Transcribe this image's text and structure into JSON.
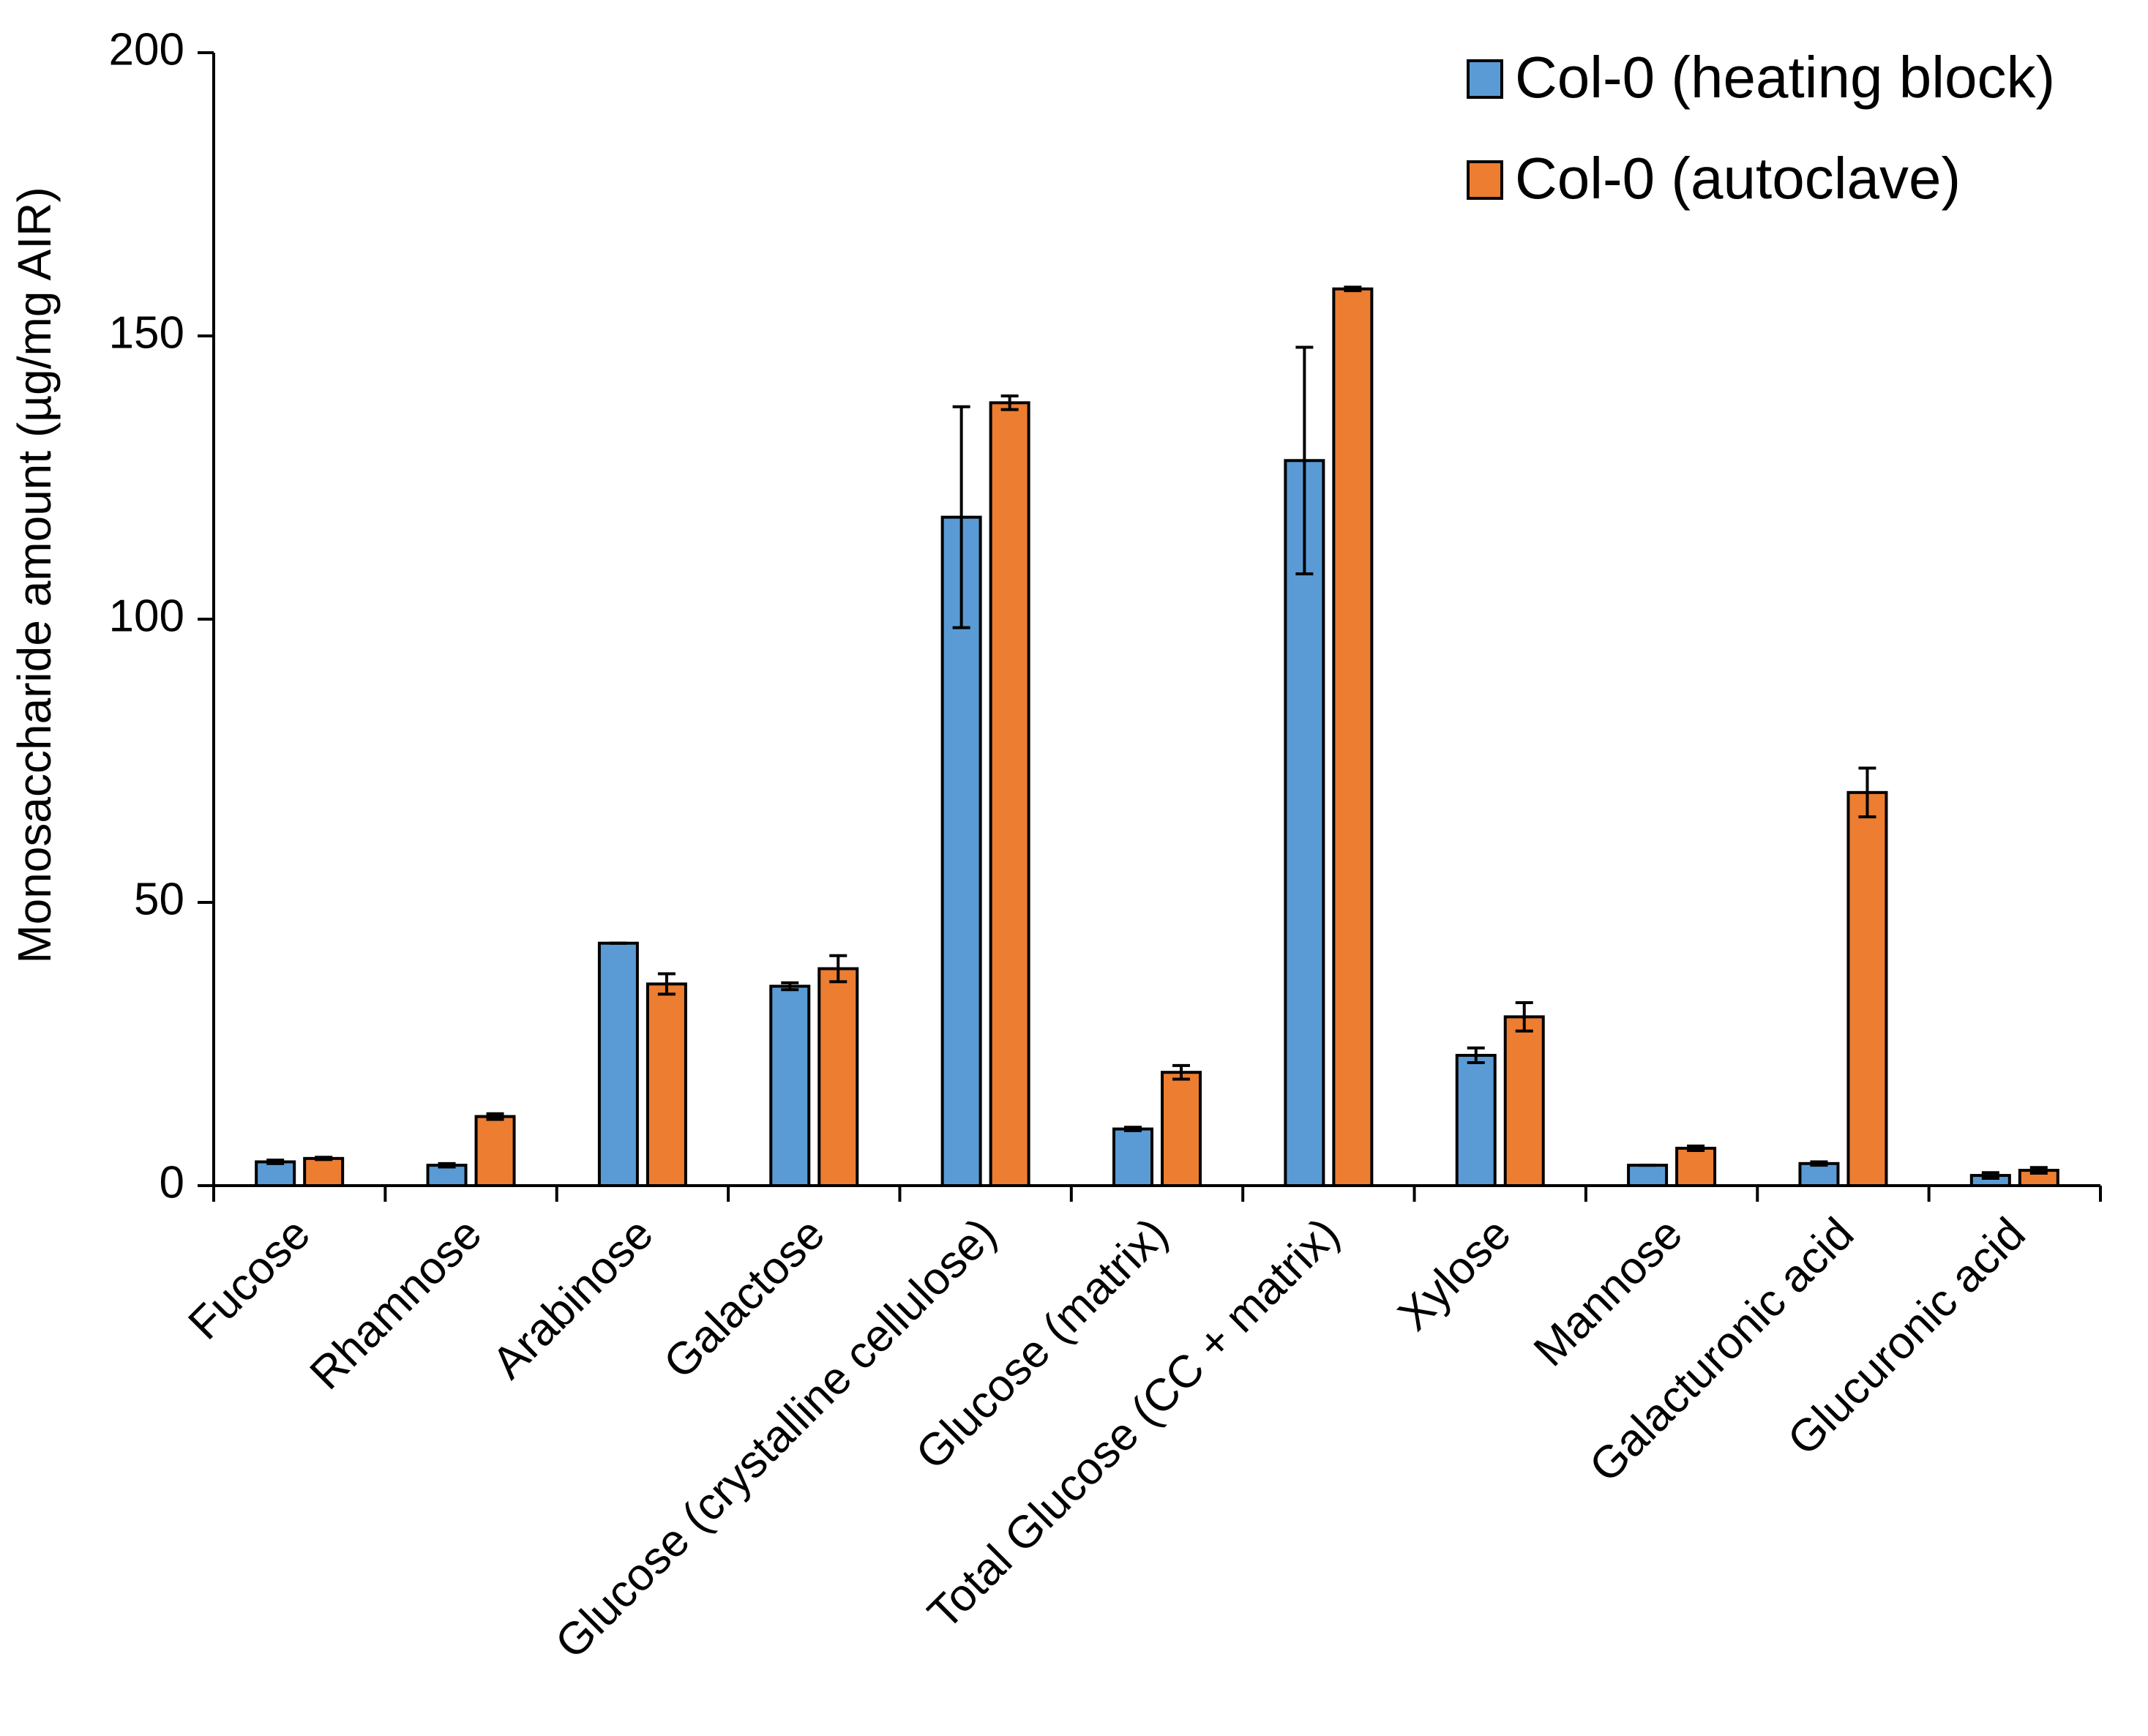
{
  "chart_data": {
    "type": "bar",
    "title": "",
    "xlabel": "",
    "ylabel": "Monosaccharide amount (µg/mg AIR)",
    "ylim": [
      0,
      200
    ],
    "yticks": [
      0,
      50,
      100,
      150,
      200
    ],
    "legend_position": "top-right",
    "categories": [
      "Fucose",
      "Rhamnose",
      "Arabinose",
      "Galactose",
      "Glucose (crystalline cellulose)",
      "Glucose (matrix)",
      "Total Glucose (CC + matrix)",
      "Xylose",
      "Mannose",
      "Galacturonic acid",
      "Glucuronic acid"
    ],
    "series": [
      {
        "name": "Col-0 (heating block)",
        "color": "#5b9bd5",
        "values": [
          4.2,
          3.6,
          42.8,
          35.2,
          118.0,
          10.0,
          128.0,
          23.0,
          3.6,
          3.9,
          1.8
        ],
        "errors": [
          0.3,
          0.3,
          0.0,
          0.6,
          19.5,
          0.3,
          20.0,
          1.3,
          0.0,
          0.3,
          0.5
        ]
      },
      {
        "name": "Col-0 (autoclave)",
        "color": "#ed7d31",
        "values": [
          4.8,
          12.2,
          35.6,
          38.3,
          138.2,
          20.0,
          158.3,
          29.8,
          6.6,
          69.4,
          2.7
        ],
        "errors": [
          0.2,
          0.5,
          1.8,
          2.3,
          1.2,
          1.2,
          0.3,
          2.5,
          0.4,
          4.3,
          0.5
        ]
      }
    ]
  }
}
